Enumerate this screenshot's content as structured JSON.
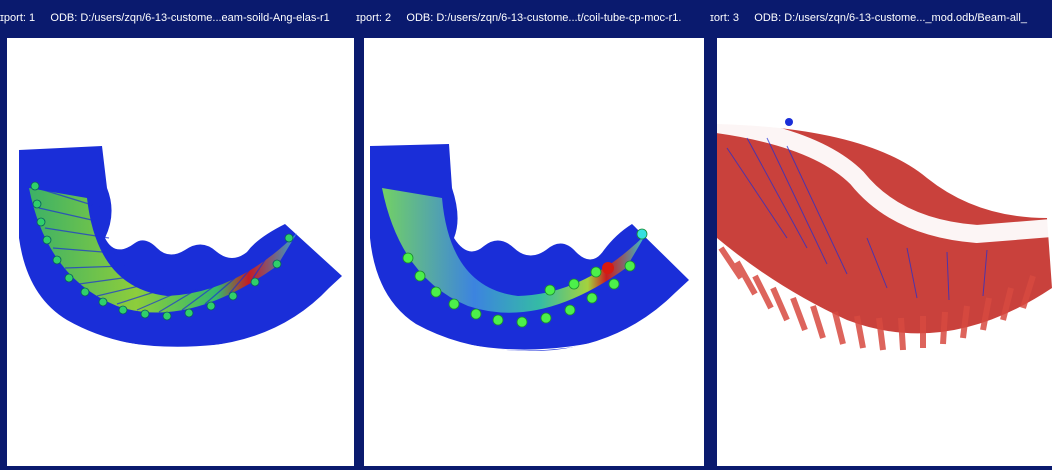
{
  "viewports": [
    {
      "title_prefix": "ɪport: 1",
      "odb_label": "ODB: D:/users/zqn/6-13-custome...eam-soild-Ang-elas-r1"
    },
    {
      "title_prefix": "ɪport: 2",
      "odb_label": "ODB: D:/users/zqn/6-13-custome...t/coil-tube-cp-moc-r1."
    },
    {
      "title_prefix": "ɪort: 3",
      "odb_label": "ODB: D:/users/zqn/6-13-custome..._mod.odb/Beam-all_"
    }
  ],
  "colors": {
    "frame": "#0a1a6e",
    "canvas": "#ffffff",
    "tube_blue": "#1a2ed8",
    "contour_green": "#4cd23a",
    "contour_red": "#d81a10",
    "beam_red": "#c0201a"
  }
}
